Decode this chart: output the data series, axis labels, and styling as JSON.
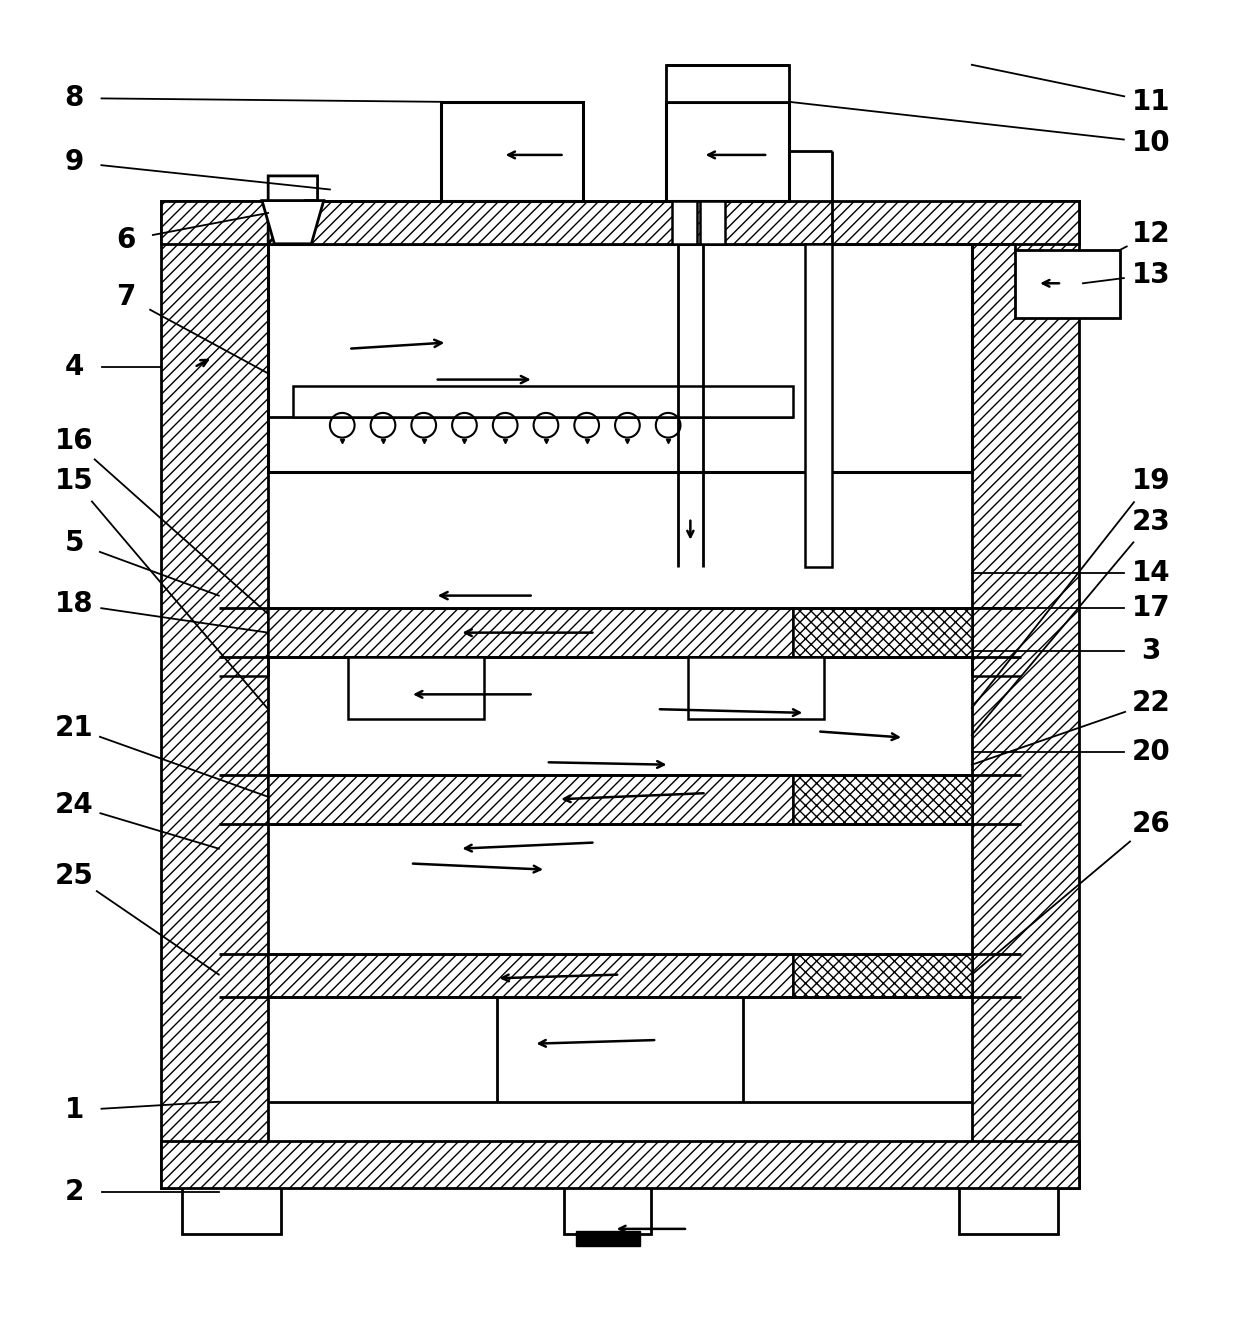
{
  "bg_color": "#ffffff",
  "line_color": "#000000",
  "fig_width": 12.4,
  "fig_height": 13.27,
  "dpi": 100
}
